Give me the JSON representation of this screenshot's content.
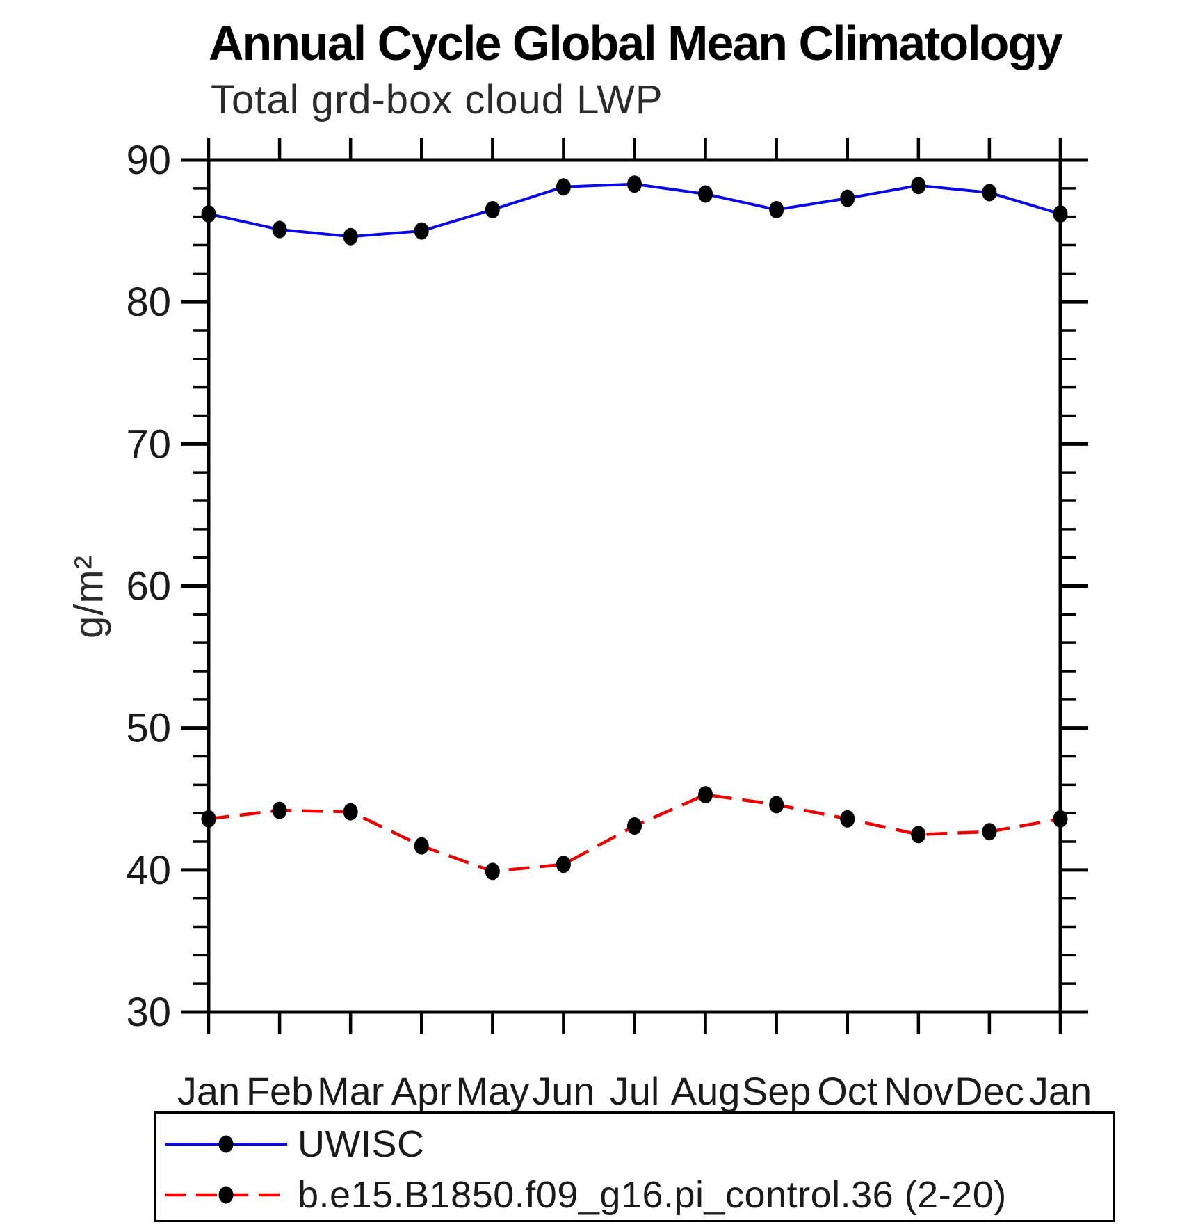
{
  "chart_data": {
    "type": "line",
    "title": "Annual Cycle Global Mean Climatology",
    "subtitle": "Total grd-box cloud LWP",
    "ylabel": "g/m²",
    "xlabel": "",
    "categories": [
      "Jan",
      "Feb",
      "Mar",
      "Apr",
      "May",
      "Jun",
      "Jul",
      "Aug",
      "Sep",
      "Oct",
      "Nov",
      "Dec",
      "Jan"
    ],
    "series": [
      {
        "name": "UWISC",
        "color": "#0a0ae6",
        "line_style": "solid",
        "marker": "black-dot",
        "values": [
          86.2,
          85.1,
          84.6,
          85.0,
          86.5,
          88.1,
          88.3,
          87.6,
          86.5,
          87.3,
          88.2,
          87.7,
          86.2
        ]
      },
      {
        "name": "b.e15.B1850.f09_g16.pi_control.36 (2-20)",
        "color": "#ee0000",
        "line_style": "dashed",
        "marker": "black-dot",
        "values": [
          43.6,
          44.2,
          44.1,
          41.7,
          39.9,
          40.4,
          43.1,
          45.3,
          44.6,
          43.6,
          42.5,
          42.7,
          43.6
        ]
      }
    ],
    "ylim": [
      30,
      90
    ],
    "y_major_ticks": [
      30,
      40,
      50,
      60,
      70,
      80,
      90
    ],
    "y_minor_step": 2,
    "grid": false,
    "legend_position": "bottom",
    "frame_color": "#000000",
    "marker_color": "#000000"
  }
}
